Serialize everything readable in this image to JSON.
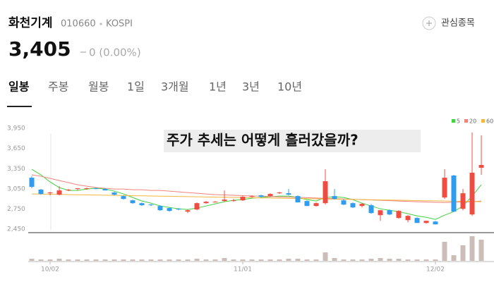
{
  "header": {
    "name": "화천기계",
    "code": "010660",
    "market": "KOSPI",
    "price": "3,405",
    "change": "0 (0.00%)",
    "watchlist": "관심종목"
  },
  "tabs": [
    "일봉",
    "주봉",
    "월봉",
    "1일",
    "3개월",
    "1년",
    "3년",
    "10년"
  ],
  "overlay_title": "주가 추세는 어떻게 흘러갔을까?",
  "chart_data": {
    "type": "candlestick",
    "categories": [
      null,
      null,
      "10/02",
      null,
      null,
      null,
      null,
      null,
      null,
      null,
      null,
      null,
      null,
      null,
      null,
      null,
      null,
      null,
      null,
      null,
      null,
      null,
      null,
      "11/01",
      null,
      null,
      null,
      null,
      null,
      null,
      null,
      null,
      null,
      null,
      null,
      null,
      null,
      null,
      null,
      null,
      null,
      null,
      null,
      null,
      "12/02",
      null,
      null,
      null,
      null,
      null
    ],
    "open": [
      3216,
      3040,
      2985,
      2964,
      3027,
      3048,
      3048,
      3059,
      3048,
      2996,
      2943,
      2880,
      2838,
      2817,
      2796,
      2765,
      2754,
      2712,
      2744,
      2838,
      2849,
      2870,
      2880,
      2880,
      2933,
      2954,
      2943,
      2985,
      2985,
      2943,
      2870,
      2796,
      2838,
      2943,
      2880,
      2838,
      2796,
      2807,
      2660,
      2733,
      2618,
      2586,
      2618,
      2544,
      2565,
      2922,
      3248,
      2754,
      2670,
      3364
    ],
    "high": [
      3240,
      3048,
      3006,
      3090,
      3048,
      3059,
      3070,
      3070,
      3059,
      3006,
      2954,
      2891,
      2849,
      2828,
      2807,
      2775,
      2765,
      2744,
      2849,
      2870,
      2870,
      3027,
      2901,
      2943,
      2954,
      2964,
      2985,
      3006,
      3048,
      2954,
      2880,
      2849,
      3342,
      3048,
      2901,
      2849,
      2838,
      2828,
      2733,
      2744,
      2733,
      2660,
      2628,
      2576,
      2576,
      3342,
      3258,
      3048,
      3888,
      3846
    ],
    "low": [
      3059,
      2964,
      2954,
      2954,
      3017,
      3027,
      3038,
      3048,
      3027,
      2954,
      2891,
      2828,
      2796,
      2796,
      2723,
      2712,
      2733,
      2691,
      2733,
      2828,
      2849,
      2859,
      2859,
      2870,
      2922,
      2922,
      2933,
      2975,
      2954,
      2849,
      2796,
      2786,
      2817,
      2891,
      2807,
      2765,
      2775,
      2681,
      2576,
      2660,
      2607,
      2555,
      2544,
      2534,
      2523,
      2901,
      2712,
      2733,
      2649,
      3258
    ],
    "close": [
      3080,
      2975,
      2996,
      3027,
      3038,
      3059,
      3059,
      3048,
      3027,
      2964,
      2901,
      2838,
      2807,
      2807,
      2733,
      2723,
      2744,
      2733,
      2838,
      2859,
      2859,
      2891,
      2880,
      2933,
      2943,
      2933,
      2975,
      2996,
      2964,
      2849,
      2796,
      2838,
      3164,
      2901,
      2817,
      2775,
      2828,
      2691,
      2733,
      2670,
      2723,
      2649,
      2544,
      2576,
      2523,
      3216,
      2712,
      2985,
      3290,
      3405
    ],
    "volume": [
      30000,
      20000,
      20000,
      30000,
      20000,
      20000,
      20000,
      20000,
      20000,
      20000,
      20000,
      20000,
      20000,
      20000,
      20000,
      20000,
      20000,
      20000,
      30000,
      20000,
      20000,
      40000,
      20000,
      20000,
      20000,
      20000,
      20000,
      20000,
      30000,
      30000,
      20000,
      20000,
      120000,
      40000,
      20000,
      20000,
      20000,
      30000,
      40000,
      30000,
      30000,
      20000,
      20000,
      20000,
      20000,
      270000,
      80000,
      220000,
      350000,
      300000
    ],
    "ylim": [
      2400,
      4180
    ],
    "volume_ylim": [
      0,
      400000
    ],
    "yticks": [
      {
        "value": 2450,
        "label": "2,450"
      },
      {
        "value": 2750,
        "label": "2,750"
      },
      {
        "value": 3050,
        "label": "3,050"
      },
      {
        "value": 3350,
        "label": "3,350"
      },
      {
        "value": 3650,
        "label": "3,650"
      },
      {
        "value": 3950,
        "label": "3,950"
      }
    ],
    "up_color": "#f04c41",
    "down_color": "#2f9cf0",
    "volume_color": "#cdbdb8",
    "moving_averages": [
      {
        "name": "5",
        "color": "#3fd33f",
        "values": [
          3342,
          3258,
          3153,
          3070,
          3027,
          3027,
          3048,
          3059,
          3048,
          3017,
          2975,
          2922,
          2870,
          2838,
          2796,
          2775,
          2754,
          2744,
          2765,
          2796,
          2828,
          2859,
          2880,
          2891,
          2912,
          2922,
          2933,
          2943,
          2943,
          2922,
          2891,
          2870,
          2922,
          2933,
          2922,
          2891,
          2838,
          2796,
          2754,
          2733,
          2712,
          2681,
          2649,
          2628,
          2597,
          2660,
          2712,
          2796,
          2943,
          3111
        ]
      },
      {
        "name": "20",
        "color": "#f0837a",
        "values": [
          3258,
          3237,
          3206,
          3174,
          3143,
          3111,
          3090,
          3070,
          3059,
          3048,
          3048,
          3038,
          3038,
          3027,
          3027,
          3017,
          3006,
          2996,
          2985,
          2975,
          2964,
          2960,
          2955,
          2950,
          2945,
          2940,
          2936,
          2932,
          2928,
          2924,
          2920,
          2915,
          2910,
          2905,
          2900,
          2895,
          2890,
          2885,
          2880,
          2875,
          2870,
          2865,
          2860,
          2855,
          2850,
          2848,
          2850,
          2855,
          2860,
          2870
        ]
      },
      {
        "name": "60",
        "color": "#f3b640",
        "values": [
          2975,
          2973,
          2970,
          2968,
          2966,
          2963,
          2961,
          2959,
          2956,
          2954,
          2952,
          2949,
          2947,
          2945,
          2942,
          2940,
          2937,
          2935,
          2933,
          2930,
          2928,
          2926,
          2923,
          2921,
          2919,
          2916,
          2914,
          2912,
          2909,
          2907,
          2905,
          2902,
          2900,
          2898,
          2895,
          2893,
          2891,
          2888,
          2886,
          2884,
          2881,
          2879,
          2877,
          2874,
          2872,
          2870,
          2867,
          2865,
          2863,
          2860
        ]
      }
    ]
  }
}
